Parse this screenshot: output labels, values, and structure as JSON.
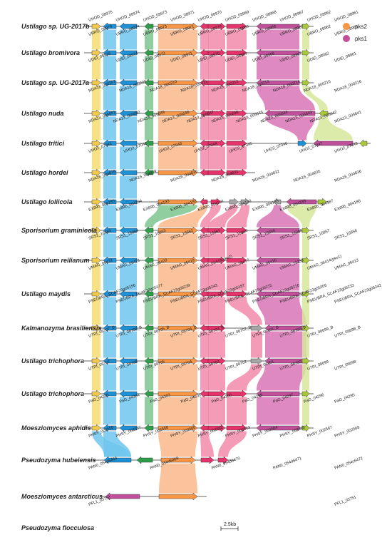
{
  "legend": [
    {
      "label": "pks2",
      "color": "#F79646"
    },
    {
      "label": "pks1",
      "color": "#C0509A"
    }
  ],
  "scale_bar": "2.5kb",
  "colors": {
    "yellow": "#F2C94C",
    "blue": "#1E90D6",
    "green": "#2E9E4B",
    "orange": "#F79646",
    "red": "#E5336B",
    "magenta": "#C0509A",
    "lime": "#A8C83A",
    "gray": "#A6A6A6",
    "band_yellow": "#F7DC6F",
    "band_blue": "#6EC6EE",
    "band_green": "#7DC68E",
    "band_orange": "#F9B88A",
    "band_red": "#F28AAA",
    "band_magenta": "#D875B6",
    "band_lime": "#D6E89A"
  },
  "rows": [
    {
      "species": "Ustilago sp. UG-2017b",
      "top": [
        "UHOD_08976",
        "UHOD_08974",
        "UHOD_08973",
        "UHOD_08971",
        "UHOD_08970",
        "UHOD_08969",
        "UHOD_08968",
        "UHOD_08967",
        "UHOD_08962",
        "UHOD_08961"
      ],
      "bottom": [
        "UBRO_08976",
        "UBRO_08974",
        "UBRO_08973",
        "UBRO_08971",
        "UBRO_08970",
        "UBRO_08969",
        "UBRO_08968",
        "UBRO_08967",
        "UBRO_08962",
        "UBRO_08961"
      ]
    },
    {
      "species": "Ustilago bromivora",
      "top": [],
      "bottom": [
        "UDID_08976",
        "UDID_08974",
        "UDID_08973",
        "UDID_08971",
        "UDID_08970",
        "UDID_08969",
        "UDID_08968",
        "UDID_08967",
        "UDID_08962",
        "UDID_08961"
      ]
    },
    {
      "species": "Ustilago sp. UG-2017a",
      "top": [],
      "bottom": [
        "NDA18_000207",
        "NDA18_000209",
        "NDA18_000210",
        "NDA18_000211",
        "NDA18_000212",
        "NDA18_000213",
        "NDA18_000214",
        "NDA18_000215",
        "NDA18_000216"
      ]
    },
    {
      "species": "Ustilago nuda",
      "top": [],
      "bottom": [
        "NDA13_005651",
        "NDA13_005650",
        "NDA13_005649",
        "NDA13_005648",
        "NDA13_005647",
        "NDA13_005646",
        "NDA13_005645",
        "NDA13_005644",
        "NDA13_005643",
        "NDA13_005642",
        "NDA13_005641"
      ]
    },
    {
      "species": "Ustilago tritici",
      "top": [],
      "bottom": [
        "UHO2_07041",
        "UHO2_07042",
        "UHO2_07043",
        "UHO2_07044",
        "UHO2_07045",
        "UHO2_07046",
        "UHO2_07047",
        "UHO2_07048"
      ]
    },
    {
      "species": "Ustilago hordei",
      "top": [],
      "bottom": [
        "NDA16_004828",
        "NDA16_004829",
        "NDA16_004830",
        "NDA16_004831",
        "NDA16_004832",
        "NDA16_004835",
        "NDA16_004836"
      ]
    },
    {
      "species": "Ustilago loliicola",
      "top": [],
      "bottom": [
        "EX895_004195",
        "EX895_004194",
        "EX895_004193",
        "EX895_004192",
        "EX895_004191",
        "EX895_004190",
        "EX895_004189",
        "EX895_004188",
        "EX895_004187",
        "EX895_004186"
      ]
    },
    {
      "species": "Sporisorium graminicola",
      "top": [],
      "bottom": [
        "SRS1_16865",
        "SRS1_16864",
        "SRS1_16863",
        "SRS1_16862",
        "SRS1_16861",
        "SRS1_16860",
        "SRS1_16859",
        "SRS1_16858",
        "SRS1_16857",
        "SRS1_16856"
      ]
    },
    {
      "species": "Sporisorium reilianum",
      "top": [],
      "bottom": [
        "UMAG_06422",
        "UMAG_06421",
        "UMAG_06420",
        "UMAG_06419",
        "UMAG_06418(pks2)",
        "UMAG_06417",
        "UMAG_06416",
        "UMAG_11239",
        "UMAG_06414(pks1)",
        "UMAG_06413"
      ]
    },
    {
      "species": "Ustilago maydis",
      "top": [],
      "bottom": [
        "PSEUBRA_SCAF23g05156",
        "PSEUBRA_SCAF23g05177",
        "PSEUBRA_SCAF23g05239",
        "PSEUBRA_SCAF23g05243",
        "PSEUBRA_SCAF23g05187",
        "PSEUBRA_SCAF23g05215",
        "PSEUBRA_SCAF23g05210",
        "PSEUBRA_SCAF23g05206",
        "PSEUBRA_SCAF23g05233",
        "PSEUBRA_SCAF23g05242"
      ]
    },
    {
      "species": "Kalmanozyma brasiliensis",
      "top": [],
      "bottom": [
        "UTRI_06707_B",
        "UTRI_06706_B",
        "UTRI_06705_B",
        "UTRI_06704_B",
        "UTRI_06703_B",
        "UTRI_06702_B",
        "UTRI_06701_B",
        "UTRI_06700_B",
        "UTRI_06699_B",
        "UTRI_06698_B"
      ]
    },
    {
      "species": "Ustilago trichophora",
      "top": [],
      "bottom": [
        "UTRI_06707",
        "UTRI_06706",
        "UTRI_06705",
        "UTRI_06704",
        "UTRI_06703",
        "UTRI_06702",
        "UTRI_06701",
        "UTRI_06700",
        "UTRI_06699",
        "UTRI_06698"
      ]
    },
    {
      "species": "Ustilago trichophora",
      "top": [],
      "bottom": [
        "PaG_04305",
        "PaG_04304",
        "PaG_04303",
        "PaG_04301",
        "PaG_04300",
        "PaG_04299",
        "PaG_04297",
        "PaG_04296",
        "PaG_04295"
      ]
    },
    {
      "species": "Moesziomyces aphidis",
      "top": [],
      "bottom": [
        "PHSY_002556",
        "PHSY_002557",
        "PHSY_002558",
        "PHSY_002560",
        "PHSY_002562",
        "PHSY_002563",
        "PHSY_002564",
        "PHSY_002566",
        "PHSY_002567",
        "PHSY_002568"
      ]
    },
    {
      "species": "Pseudozyma hubeiensis",
      "top": [],
      "bottom": [
        "PAN0_054d6468",
        "PAN0_054d6469",
        "PAN0_054d6470",
        "PAN0_054d6471",
        "PAN0_054c6472"
      ]
    },
    {
      "species": "Moesziomyces antarcticus",
      "top": [],
      "bottom": [
        "PFL1_03752",
        "PFL1_03751"
      ]
    },
    {
      "species": "Pseudozyma flocculosa",
      "top": [],
      "bottom": []
    }
  ]
}
